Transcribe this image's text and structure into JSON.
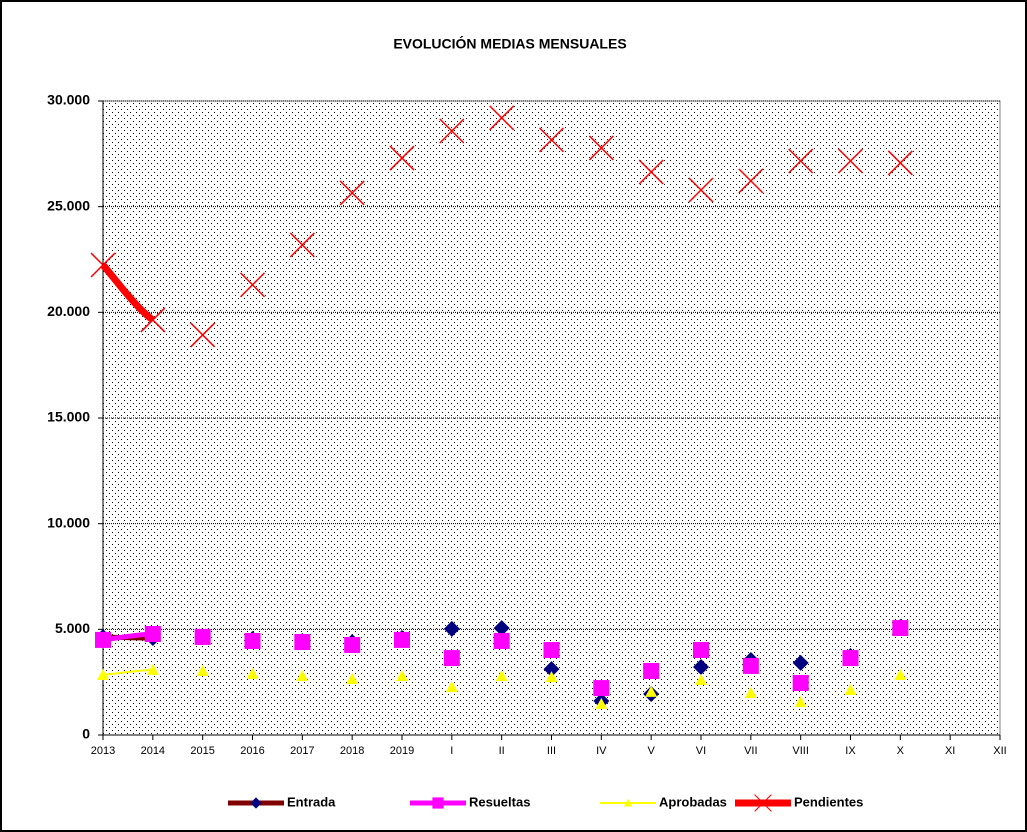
{
  "chart_data": {
    "type": "line",
    "title": "EVOLUCIÓN MEDIAS MENSUALES",
    "categories": [
      "2013",
      "2014",
      "2015",
      "2016",
      "2017",
      "2018",
      "2019",
      "I",
      "II",
      "III",
      "IV",
      "V",
      "VI",
      "VII",
      "VIII",
      "IX",
      "X",
      "XI",
      "XII"
    ],
    "series": [
      {
        "name": "Entrada",
        "color": "#800000",
        "marker_color": "#000080",
        "marker": "diamond",
        "values": [
          4640,
          4590,
          4640,
          4540,
          4450,
          4400,
          4590,
          5020,
          5060,
          3120,
          1610,
          1940,
          3220,
          3550,
          3410,
          3740,
          5110,
          null,
          null
        ]
      },
      {
        "name": "Resueltas",
        "color": "#FF00FF",
        "marker_color": "#FF00FF",
        "marker": "square",
        "values": [
          4500,
          4780,
          4640,
          4450,
          4400,
          4260,
          4500,
          3640,
          4450,
          4020,
          2220,
          3030,
          4020,
          3270,
          2460,
          3640,
          5060,
          null,
          null
        ]
      },
      {
        "name": "Aprobadas",
        "color": "#FFFF00",
        "marker_color": "#FFFF00",
        "marker": "triangle",
        "values": [
          2840,
          3080,
          3030,
          2890,
          2790,
          2650,
          2790,
          2270,
          2790,
          2740,
          1470,
          2040,
          2600,
          1990,
          1560,
          2130,
          2840,
          null,
          null
        ]
      },
      {
        "name": "Pendientes",
        "color": "#FF0000",
        "marker_color": "#FF0000",
        "marker": "x",
        "values": [
          22240,
          19640,
          18930,
          21300,
          23190,
          25650,
          27300,
          28580,
          29200,
          28160,
          27780,
          26640,
          25790,
          26220,
          27160,
          27160,
          27070,
          null,
          null
        ]
      }
    ],
    "ylim": [
      0,
      30000
    ],
    "yticks": [
      0,
      {
        "value": 5000,
        "label": "5.000"
      },
      {
        "value": 10000,
        "label": "10.000"
      },
      {
        "value": 15000,
        "label": "15.000"
      },
      {
        "value": 20000,
        "label": "20.000"
      },
      {
        "value": 25000,
        "label": "25.000"
      },
      {
        "value": 30000,
        "label": "30.000"
      }
    ],
    "grid": true,
    "legend": "bottom"
  }
}
